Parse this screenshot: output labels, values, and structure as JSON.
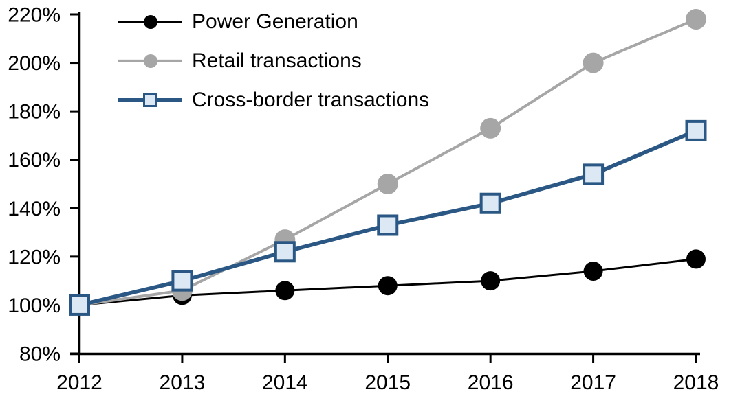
{
  "chart_data": {
    "type": "line",
    "title": "",
    "xlabel": "",
    "ylabel": "",
    "categories": [
      "2012",
      "2013",
      "2014",
      "2015",
      "2016",
      "2017",
      "2018"
    ],
    "ylim": [
      80,
      220
    ],
    "y_tick_values": [
      80,
      100,
      120,
      140,
      160,
      180,
      200,
      220
    ],
    "y_tick_labels": [
      "80%",
      "100%",
      "120%",
      "140%",
      "160%",
      "180%",
      "200%",
      "220%"
    ],
    "grid": false,
    "legend_position": "top-left",
    "axis_color": "#000000",
    "series": [
      {
        "name": "Power Generation",
        "values": [
          100,
          104,
          106,
          108,
          110,
          114,
          119
        ],
        "color": "#000000",
        "marker": "circle",
        "marker_fill": "#000000"
      },
      {
        "name": "Retail transactions",
        "values": [
          100,
          106,
          127,
          150,
          173,
          200,
          218
        ],
        "color": "#a6a6a6",
        "marker": "circle",
        "marker_fill": "#a6a6a6"
      },
      {
        "name": "Cross-border transactions",
        "values": [
          100,
          110,
          122,
          133,
          142,
          154,
          172
        ],
        "color": "#2a5783",
        "marker": "square",
        "marker_fill": "#dce9f5"
      }
    ]
  }
}
